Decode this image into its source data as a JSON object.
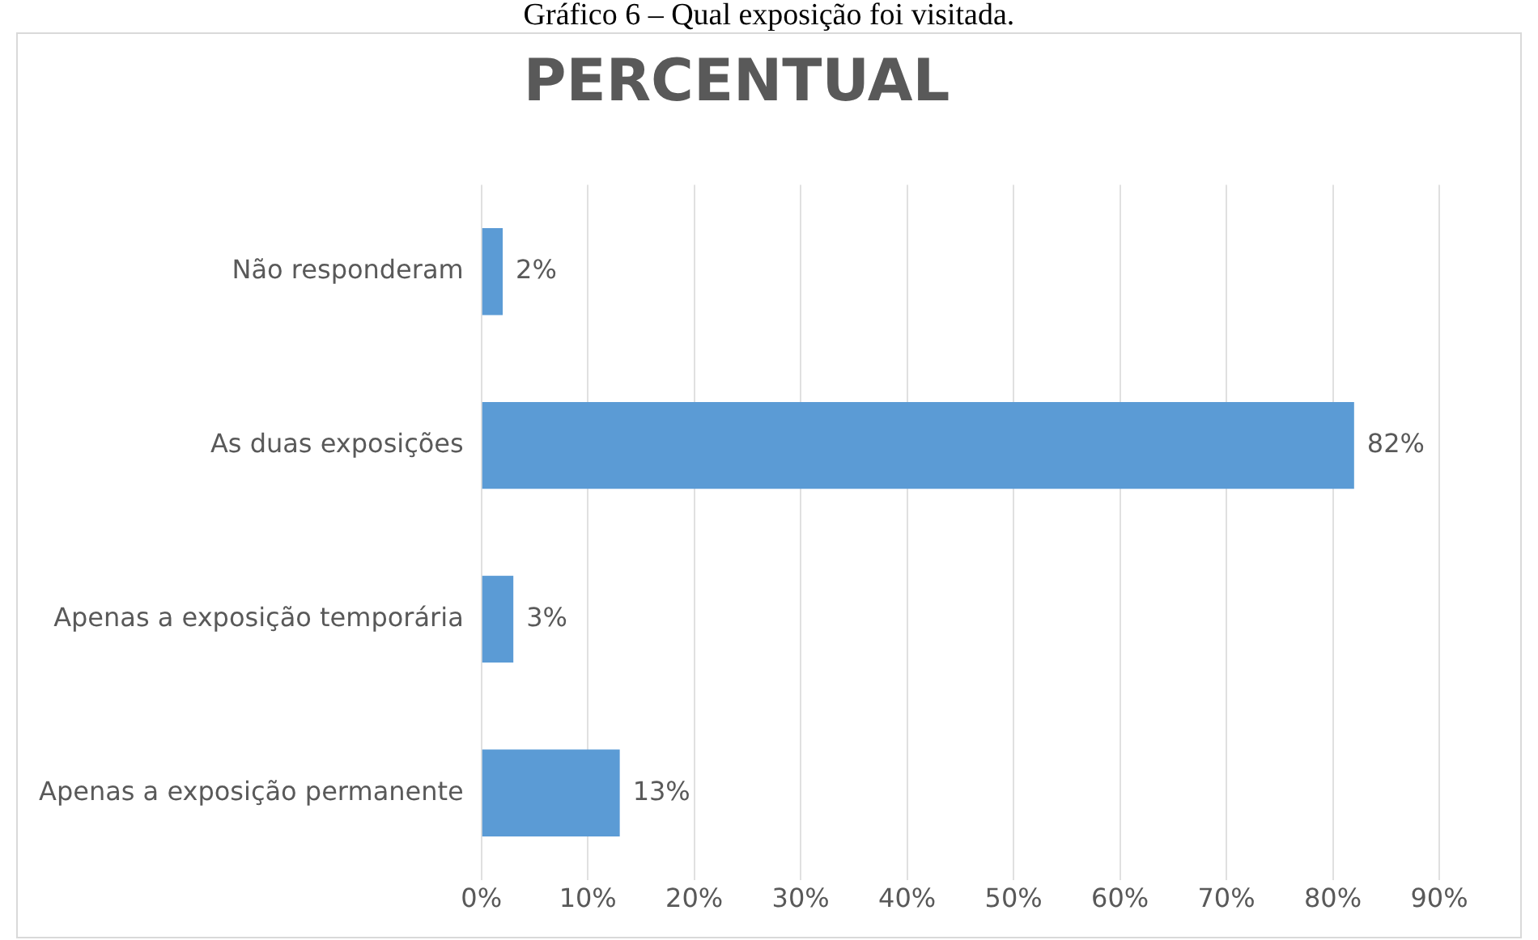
{
  "chart_data": {
    "type": "bar",
    "orientation": "horizontal",
    "title": "PERCENTUAL",
    "annotations": [
      "Gráfico 6 – Qual exposição foi visitada."
    ],
    "categories": [
      "Não responderam",
      "As duas exposições",
      "Apenas a exposição temporária",
      "Apenas a exposição permanente"
    ],
    "values": [
      2,
      82,
      3,
      13
    ],
    "value_labels": [
      "2%",
      "82%",
      "3%",
      "13%"
    ],
    "color": "#5b9bd5",
    "xlim": [
      0,
      90
    ],
    "xticks": [
      {
        "value": 0,
        "label": "0%"
      },
      {
        "value": 10,
        "label": "10%"
      },
      {
        "value": 20,
        "label": "20%"
      },
      {
        "value": 30,
        "label": "30%"
      },
      {
        "value": 40,
        "label": "40%"
      },
      {
        "value": 50,
        "label": "50%"
      },
      {
        "value": 60,
        "label": "60%"
      },
      {
        "value": 70,
        "label": "70%"
      },
      {
        "value": 80,
        "label": "80%"
      },
      {
        "value": 90,
        "label": "90%"
      }
    ],
    "grid": "x",
    "legend": false
  }
}
